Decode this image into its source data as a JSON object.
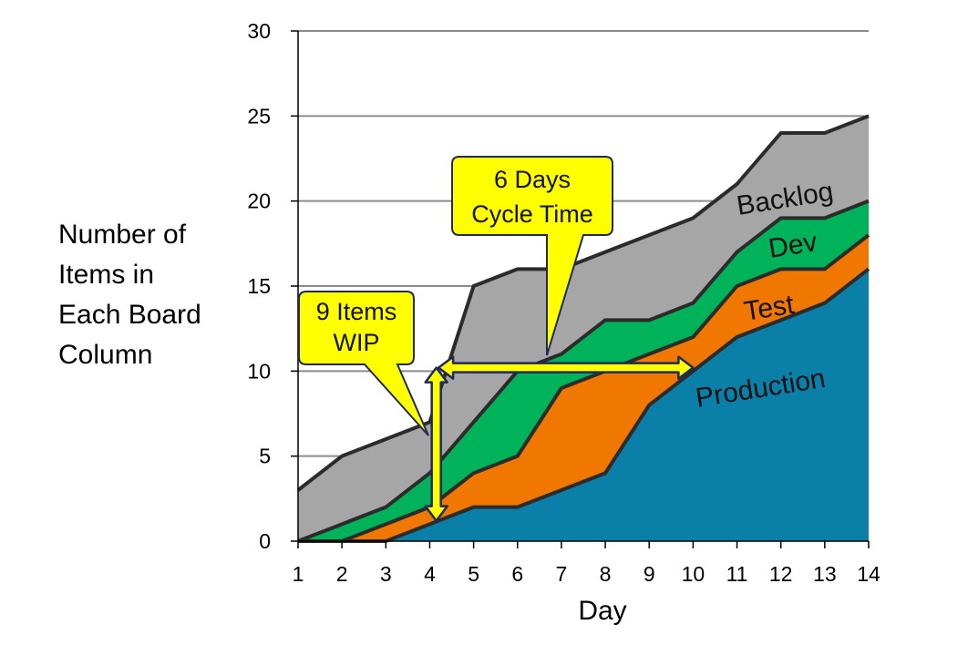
{
  "chart_data": {
    "type": "area",
    "stacked": true,
    "title": "",
    "xlabel": "Day",
    "ylabel_lines": [
      "Number of",
      "Items in",
      "Each Board",
      "Column"
    ],
    "x": [
      1,
      2,
      3,
      4,
      5,
      6,
      7,
      8,
      9,
      10,
      11,
      12,
      13,
      14
    ],
    "xlim": [
      1,
      14
    ],
    "ylim": [
      0,
      30
    ],
    "yticks": [
      0,
      5,
      10,
      15,
      20,
      25,
      30
    ],
    "grid": "horizontal",
    "series": [
      {
        "name": "Production",
        "color": "#0a7fa8",
        "values": [
          0,
          0,
          0,
          1,
          2,
          2,
          3,
          4,
          8,
          10,
          12,
          13,
          14,
          16
        ]
      },
      {
        "name": "Test",
        "color": "#f07800",
        "values": [
          0,
          0,
          1,
          1,
          2,
          3,
          6,
          6,
          3,
          2,
          3,
          3,
          2,
          2
        ]
      },
      {
        "name": "Dev",
        "color": "#00b35a",
        "values": [
          0,
          1,
          1,
          2,
          3,
          5,
          2,
          3,
          2,
          2,
          2,
          3,
          3,
          2
        ]
      },
      {
        "name": "Backlog",
        "color": "#a6a6a6",
        "values": [
          3,
          4,
          4,
          3,
          8,
          6,
          5,
          4,
          5,
          5,
          4,
          5,
          5,
          5
        ]
      }
    ],
    "annotations": [
      {
        "id": "wip",
        "lines": [
          "9 Items",
          "WIP"
        ],
        "points_to_day": 4,
        "points_to_value": 6
      },
      {
        "id": "cycle",
        "lines": [
          "6 Days",
          "Cycle Time"
        ],
        "points_to_day": 6.6,
        "points_to_value": 10.8
      }
    ],
    "arrows": [
      {
        "id": "wip-arrow",
        "direction": "vertical",
        "day": 4.15,
        "from": 1.2,
        "to": 10.2
      },
      {
        "id": "cycle-arrow",
        "direction": "horizontal",
        "value": 10.2,
        "from": 4.2,
        "to": 10
      }
    ],
    "callout_fill": "#ffff00",
    "arrow_fill": "#ffff00",
    "arrow_stroke": "#1f2a5a"
  }
}
